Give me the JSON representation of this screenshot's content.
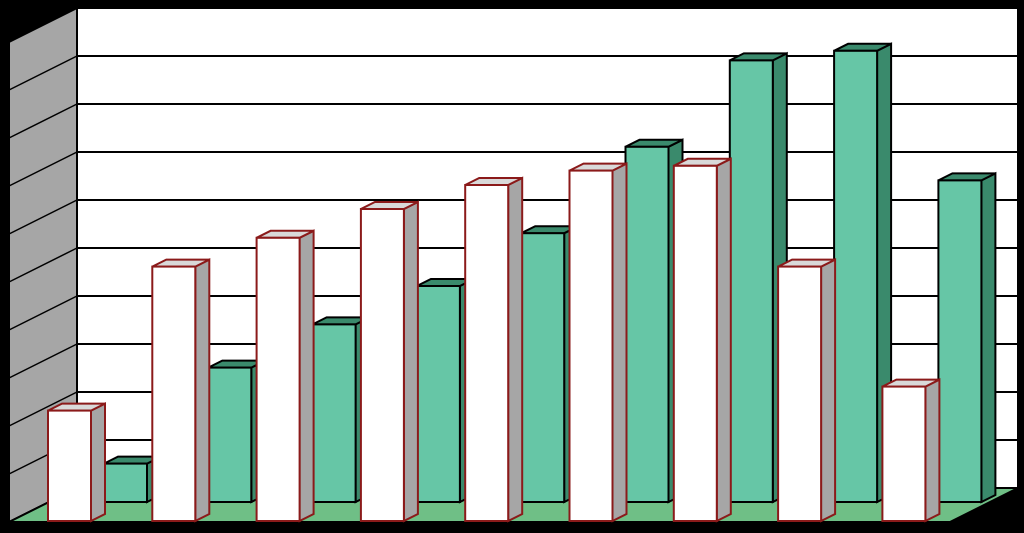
{
  "chart_data": {
    "type": "bar",
    "style": "3d-clustered-column",
    "grid": true,
    "ylim": [
      0,
      10
    ],
    "categories": [
      "",
      "",
      "",
      "",
      "",
      "",
      "",
      "",
      ""
    ],
    "series": [
      {
        "values": [
          2.3,
          5.3,
          5.9,
          6.5,
          7.0,
          7.3,
          7.4,
          5.3,
          2.8
        ]
      },
      {
        "values": [
          0.8,
          2.8,
          3.7,
          4.5,
          5.6,
          7.4,
          9.2,
          9.4,
          6.7
        ]
      }
    ]
  },
  "colors": {
    "background": "#000000",
    "plot_area": "#ffffff",
    "side_wall": "#a6a6a6",
    "floor": "#6fbf86",
    "series_1_face": "#ffffff",
    "series_1_side": "#a6a6a6",
    "series_1_edge": "#8b1a1a",
    "series_2_face": "#66c6a6",
    "series_2_side": "#3a8a6c",
    "series_2_edge": "#000000"
  }
}
